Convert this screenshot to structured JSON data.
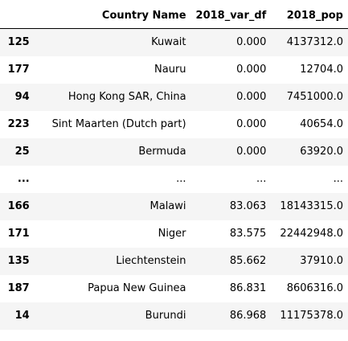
{
  "table": {
    "columns": {
      "index": "",
      "country_name": "Country Name",
      "var_df": "2018_var_df",
      "pop": "2018_pop"
    },
    "rows": [
      {
        "index": "125",
        "country_name": "Kuwait",
        "var_df": "0.000",
        "pop": "4137312.0"
      },
      {
        "index": "177",
        "country_name": "Nauru",
        "var_df": "0.000",
        "pop": "12704.0"
      },
      {
        "index": "94",
        "country_name": "Hong Kong SAR, China",
        "var_df": "0.000",
        "pop": "7451000.0"
      },
      {
        "index": "223",
        "country_name": "Sint Maarten (Dutch part)",
        "var_df": "0.000",
        "pop": "40654.0"
      },
      {
        "index": "25",
        "country_name": "Bermuda",
        "var_df": "0.000",
        "pop": "63920.0"
      },
      {
        "index": "...",
        "country_name": "...",
        "var_df": "...",
        "pop": "..."
      },
      {
        "index": "166",
        "country_name": "Malawi",
        "var_df": "83.063",
        "pop": "18143315.0"
      },
      {
        "index": "171",
        "country_name": "Niger",
        "var_df": "83.575",
        "pop": "22442948.0"
      },
      {
        "index": "135",
        "country_name": "Liechtenstein",
        "var_df": "85.662",
        "pop": "37910.0"
      },
      {
        "index": "187",
        "country_name": "Papua New Guinea",
        "var_df": "86.831",
        "pop": "8606316.0"
      },
      {
        "index": "14",
        "country_name": "Burundi",
        "var_df": "86.968",
        "pop": "11175378.0"
      }
    ]
  }
}
